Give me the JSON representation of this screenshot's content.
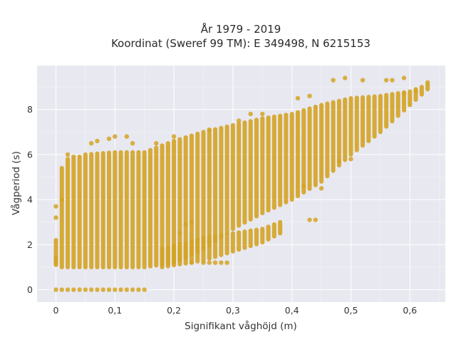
{
  "chart_data": {
    "type": "scatter",
    "title_line1": "År 1979 - 2019",
    "title_line2": "Koordinat (Sweref 99 TM): E 349498, N 6215153",
    "xlabel": "Signifikant våghöjd (m)",
    "ylabel": "Vågperiod (s)",
    "xlim": [
      -0.032,
      0.66
    ],
    "ylim": [
      -0.55,
      9.95
    ],
    "xticks": [
      0,
      0.1,
      0.2,
      0.3,
      0.4,
      0.5,
      0.6
    ],
    "xtick_labels": [
      "0",
      "0,1",
      "0,2",
      "0,3",
      "0,4",
      "0,5",
      "0,6"
    ],
    "yticks": [
      0,
      2,
      4,
      6,
      8
    ],
    "ytick_labels": [
      "0",
      "2",
      "4",
      "6",
      "8"
    ],
    "grid": true,
    "background": "#e8e8f0",
    "marker_color": "#d4a322",
    "x_step": 0.01,
    "main_band": [
      {
        "x": 0.0,
        "ymin": 1.1,
        "ymax": 2.2
      },
      {
        "x": 0.01,
        "ymin": 1.0,
        "ymax": 5.4
      },
      {
        "x": 0.02,
        "ymin": 1.0,
        "ymax": 5.8
      },
      {
        "x": 0.03,
        "ymin": 1.0,
        "ymax": 5.8
      },
      {
        "x": 0.05,
        "ymin": 1.0,
        "ymax": 6.0
      },
      {
        "x": 0.1,
        "ymin": 1.0,
        "ymax": 6.1
      },
      {
        "x": 0.15,
        "ymin": 1.0,
        "ymax": 6.1
      },
      {
        "x": 0.2,
        "ymin": 1.2,
        "ymax": 6.6
      },
      {
        "x": 0.25,
        "ymin": 1.8,
        "ymax": 7.0
      },
      {
        "x": 0.3,
        "ymin": 2.7,
        "ymax": 7.3
      },
      {
        "x": 0.35,
        "ymin": 3.4,
        "ymax": 7.6
      },
      {
        "x": 0.4,
        "ymin": 4.0,
        "ymax": 7.8
      },
      {
        "x": 0.45,
        "ymin": 4.8,
        "ymax": 8.2
      },
      {
        "x": 0.5,
        "ymin": 6.0,
        "ymax": 8.5
      },
      {
        "x": 0.55,
        "ymin": 7.0,
        "ymax": 8.6
      },
      {
        "x": 0.6,
        "ymin": 8.2,
        "ymax": 8.8
      },
      {
        "x": 0.63,
        "ymin": 8.9,
        "ymax": 9.1
      }
    ],
    "low_band": [
      {
        "x": 0.18,
        "ymin": 1.0,
        "ymax": 1.8
      },
      {
        "x": 0.25,
        "ymin": 1.3,
        "ymax": 2.3
      },
      {
        "x": 0.3,
        "ymin": 1.7,
        "ymax": 2.5
      },
      {
        "x": 0.35,
        "ymin": 2.1,
        "ymax": 2.7
      },
      {
        "x": 0.38,
        "ymin": 2.5,
        "ymax": 3.0
      }
    ],
    "zero_points_x": [
      0.0,
      0.01,
      0.02,
      0.03,
      0.04,
      0.05,
      0.06,
      0.07,
      0.08,
      0.09,
      0.1,
      0.11,
      0.12,
      0.13,
      0.14,
      0.15
    ],
    "outlier_points": [
      [
        0.0,
        3.7
      ],
      [
        0.0,
        3.2
      ],
      [
        0.0,
        1.4
      ],
      [
        0.0,
        1.2
      ],
      [
        0.01,
        4.0
      ],
      [
        0.02,
        6.0
      ],
      [
        0.03,
        5.9
      ],
      [
        0.06,
        6.5
      ],
      [
        0.07,
        6.6
      ],
      [
        0.09,
        6.7
      ],
      [
        0.1,
        6.8
      ],
      [
        0.12,
        6.8
      ],
      [
        0.13,
        6.5
      ],
      [
        0.17,
        6.5
      ],
      [
        0.2,
        6.8
      ],
      [
        0.26,
        7.1
      ],
      [
        0.31,
        7.5
      ],
      [
        0.33,
        7.8
      ],
      [
        0.35,
        7.8
      ],
      [
        0.41,
        8.5
      ],
      [
        0.43,
        8.6
      ],
      [
        0.47,
        9.3
      ],
      [
        0.49,
        9.4
      ],
      [
        0.52,
        9.3
      ],
      [
        0.56,
        9.3
      ],
      [
        0.57,
        9.3
      ],
      [
        0.59,
        9.4
      ],
      [
        0.59,
        8.7
      ],
      [
        0.61,
        8.8
      ],
      [
        0.63,
        9.2
      ],
      [
        0.45,
        4.5
      ],
      [
        0.42,
        4.6
      ],
      [
        0.5,
        5.8
      ],
      [
        0.48,
        5.7
      ],
      [
        0.23,
        1.2
      ],
      [
        0.25,
        1.2
      ],
      [
        0.26,
        1.2
      ],
      [
        0.27,
        1.2
      ],
      [
        0.28,
        1.2
      ],
      [
        0.29,
        1.2
      ],
      [
        0.43,
        3.1
      ],
      [
        0.44,
        3.1
      ],
      [
        0.21,
        2.5
      ],
      [
        0.22,
        2.9
      ],
      [
        0.23,
        3.0
      ]
    ]
  }
}
